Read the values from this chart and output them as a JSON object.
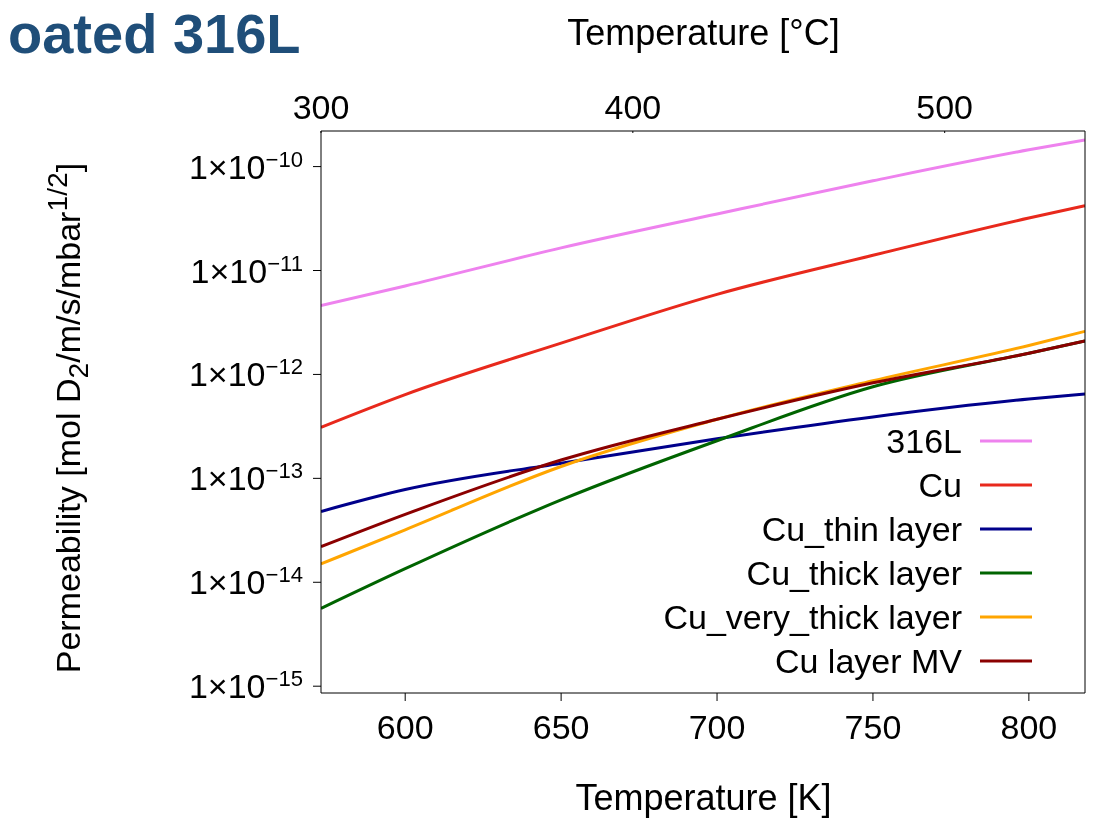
{
  "chart_data": {
    "type": "line",
    "title": "oated 316L",
    "xlabel": "Temperature [K]",
    "x2label": "Temperature [°C]",
    "ylabel": "Permeability [mol D$_{2}$/m/s/mbar$^{1/2}$]",
    "x": [
      573,
      600,
      650,
      700,
      750,
      800,
      818
    ],
    "xlim": [
      573,
      818
    ],
    "xticks": [
      600,
      650,
      700,
      750,
      800
    ],
    "x2lim": [
      300,
      545
    ],
    "x2ticks": [
      300,
      400,
      500
    ],
    "log": "y",
    "ylim": [
      8.6e-16,
      2.2e-10
    ],
    "yticks": [
      {
        "value": 1e-15,
        "label": "1×10$^{−15}$"
      },
      {
        "value": 1e-14,
        "label": "1×10$^{−14}$"
      },
      {
        "value": 1e-13,
        "label": "1×10$^{−13}$"
      },
      {
        "value": 1e-12,
        "label": "1×10$^{−12}$"
      },
      {
        "value": 1e-11,
        "label": "1×10$^{−11}$"
      },
      {
        "value": 1e-10,
        "label": "1×10$^{−10}$"
      }
    ],
    "grid": false,
    "legend": "bottom right",
    "marker": "none",
    "line_style": "solid",
    "series": [
      {
        "name": "316L",
        "color": "#ee82ee",
        "values": [
          4.6e-12,
          7.1e-12,
          1.65e-11,
          3.5e-11,
          7.3e-11,
          1.45e-10,
          1.8e-10
        ]
      },
      {
        "name": "Cu",
        "color": "#e8291c",
        "values": [
          3.1e-13,
          6.4e-13,
          2e-12,
          5.9e-12,
          1.4e-11,
          3.2e-11,
          4.2e-11
        ]
      },
      {
        "name": "Cu_thin layer",
        "color": "#00008b",
        "values": [
          4.8e-14,
          7.8e-14,
          1.4e-13,
          2.4e-13,
          3.9e-13,
          5.8e-13,
          6.5e-13
        ]
      },
      {
        "name": "Cu_thick layer",
        "color": "#006400",
        "values": [
          5.6e-15,
          1.35e-14,
          6.2e-14,
          2.3e-13,
          7.6e-13,
          1.6e-12,
          2.1e-12
        ]
      },
      {
        "name": "Cu_very_thick layer",
        "color": "#ffa500",
        "values": [
          1.5e-14,
          3.2e-14,
          1.3e-13,
          3.7e-13,
          8.7e-13,
          1.9e-12,
          2.6e-12
        ]
      },
      {
        "name": "Cu layer MV",
        "color": "#8b0000",
        "values": [
          2.2e-14,
          4.5e-14,
          1.5e-13,
          3.7e-13,
          8.3e-13,
          1.6e-12,
          2.1e-12
        ]
      }
    ]
  }
}
